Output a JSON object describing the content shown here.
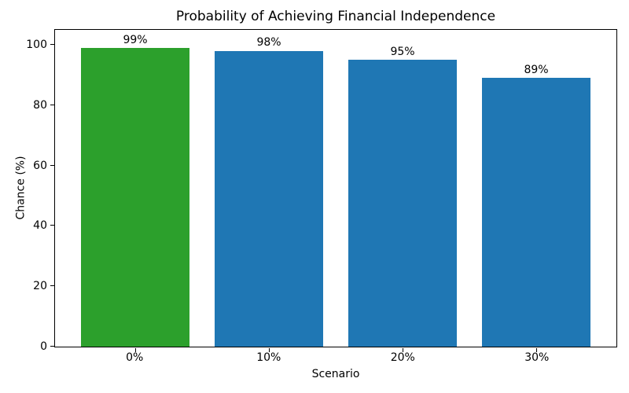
{
  "chart_data": {
    "type": "bar",
    "title": "Probability of Achieving Financial Independence",
    "xlabel": "Scenario",
    "ylabel": "Chance (%)",
    "categories": [
      "0%",
      "10%",
      "20%",
      "30%"
    ],
    "values": [
      99,
      98,
      95,
      89
    ],
    "bar_labels": [
      "99%",
      "98%",
      "95%",
      "89%"
    ],
    "bar_colors": [
      "#2ca02c",
      "#1f77b4",
      "#1f77b4",
      "#1f77b4"
    ],
    "ylim": [
      0,
      105
    ],
    "y_ticks": [
      0,
      20,
      40,
      60,
      80,
      100
    ],
    "grid": false,
    "legend_position": "none",
    "colors": {
      "highlight_bar": "#2ca02c",
      "default_bar": "#1f77b4",
      "axis": "#000000",
      "background": "#ffffff"
    }
  }
}
